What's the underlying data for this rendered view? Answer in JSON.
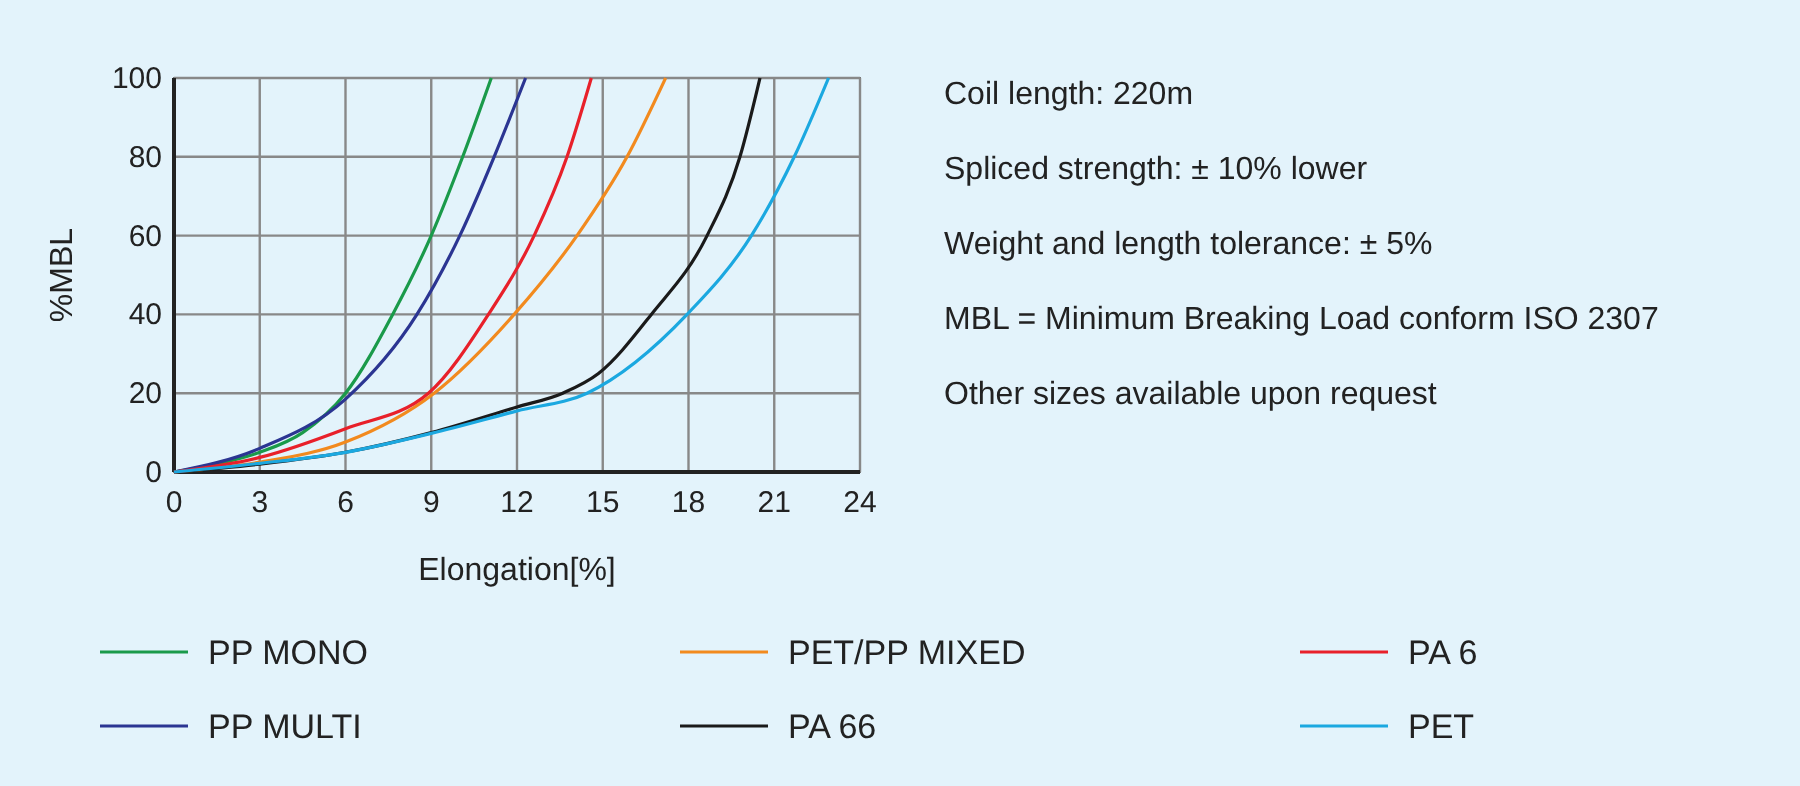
{
  "chart_data": {
    "type": "line",
    "xlabel": "Elongation[%]",
    "ylabel": "%MBL",
    "xlim": [
      0,
      24
    ],
    "xticks": [
      0,
      3,
      6,
      9,
      12,
      15,
      18,
      21,
      24
    ],
    "ylim": [
      0,
      100
    ],
    "yticks": [
      0,
      20,
      40,
      60,
      80,
      100
    ],
    "grid": true,
    "legend": "bottom",
    "line_style": "solid",
    "marker": "none",
    "series": [
      {
        "name": "PP MONO",
        "color": "#1a9a4a",
        "x": [
          0,
          1.5,
          3,
          4.5,
          6,
          7.65,
          9,
          10.1,
          11.1
        ],
        "values": [
          0,
          2,
          5,
          10,
          20,
          40,
          60,
          80,
          100
        ]
      },
      {
        "name": "PP MULTI",
        "color": "#2b3592",
        "x": [
          0,
          3,
          6,
          8.5,
          10,
          11.2,
          12.3
        ],
        "values": [
          0,
          6,
          18.5,
          40,
          60,
          80,
          100
        ]
      },
      {
        "name": "PET/PP MIXED",
        "color": "#f28a1e",
        "x": [
          0,
          3,
          6,
          9.1,
          11.9,
          14.1,
          15.85,
          17.2
        ],
        "values": [
          0,
          2.5,
          7.6,
          20,
          40,
          60,
          80,
          100
        ]
      },
      {
        "name": "PA 66",
        "color": "#1a1a1a",
        "x": [
          0,
          3,
          6,
          9,
          12,
          13.6,
          14.85,
          16.7,
          18.65,
          19.8,
          20.5
        ],
        "values": [
          0,
          2,
          5,
          10,
          16.5,
          20,
          25,
          40,
          60,
          80,
          100
        ]
      },
      {
        "name": "PA 6",
        "color": "#e8202a",
        "x": [
          0,
          3,
          6,
          8.9,
          11,
          12.6,
          13.75,
          14.6
        ],
        "values": [
          0,
          3.7,
          11,
          20,
          40,
          60,
          80,
          100
        ]
      },
      {
        "name": "PET",
        "color": "#1ba8e0",
        "x": [
          0,
          3,
          6,
          9,
          12,
          14.45,
          17.95,
          20.2,
          21.7,
          22.9
        ],
        "values": [
          0,
          2.2,
          5,
          9.8,
          15.5,
          20,
          40,
          60,
          80,
          100
        ]
      }
    ],
    "annotations": [
      "Coil length: 220m",
      "Spliced strength: ± 10% lower",
      "Weight and length tolerance: ± 5%",
      "MBL = Minimum Breaking Load conform ISO 2307",
      "Other sizes available upon request"
    ]
  }
}
